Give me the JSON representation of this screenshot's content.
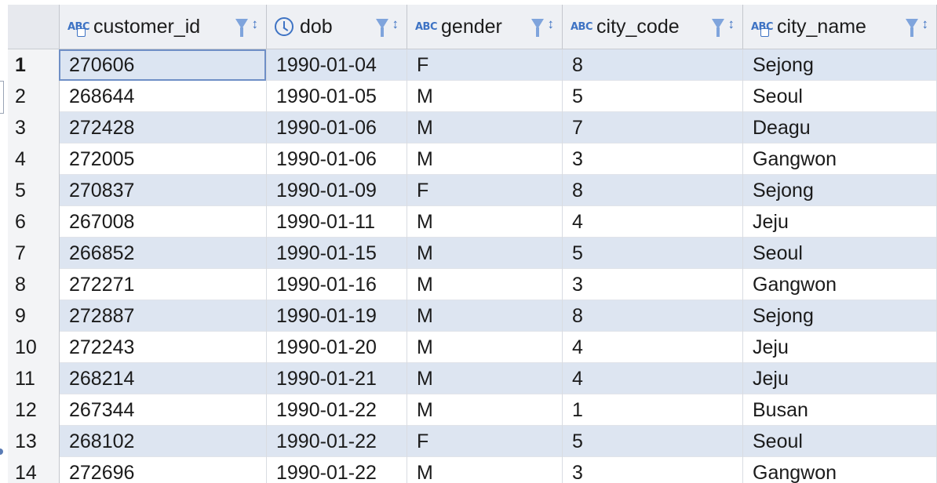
{
  "table": {
    "columns": [
      {
        "name": "customer_id",
        "type_icon": "text-key-type-icon",
        "type_label": "ABC"
      },
      {
        "name": "dob",
        "type_icon": "clock-type-icon",
        "type_label": ""
      },
      {
        "name": "gender",
        "type_icon": "text-type-icon",
        "type_label": "ABC"
      },
      {
        "name": "city_code",
        "type_icon": "text-type-icon",
        "type_label": "ABC"
      },
      {
        "name": "city_name",
        "type_icon": "text-key-type-icon",
        "type_label": "ABC"
      }
    ],
    "rows": [
      {
        "n": "1",
        "cells": [
          "270606",
          "1990-01-04",
          "F",
          "8",
          "Sejong"
        ]
      },
      {
        "n": "2",
        "cells": [
          "268644",
          "1990-01-05",
          "M",
          "5",
          "Seoul"
        ]
      },
      {
        "n": "3",
        "cells": [
          "272428",
          "1990-01-06",
          "M",
          "7",
          "Deagu"
        ]
      },
      {
        "n": "4",
        "cells": [
          "272005",
          "1990-01-06",
          "M",
          "3",
          "Gangwon"
        ]
      },
      {
        "n": "5",
        "cells": [
          "270837",
          "1990-01-09",
          "F",
          "8",
          "Sejong"
        ]
      },
      {
        "n": "6",
        "cells": [
          "267008",
          "1990-01-11",
          "M",
          "4",
          "Jeju"
        ]
      },
      {
        "n": "7",
        "cells": [
          "266852",
          "1990-01-15",
          "M",
          "5",
          "Seoul"
        ]
      },
      {
        "n": "8",
        "cells": [
          "272271",
          "1990-01-16",
          "M",
          "3",
          "Gangwon"
        ]
      },
      {
        "n": "9",
        "cells": [
          "272887",
          "1990-01-19",
          "M",
          "8",
          "Sejong"
        ]
      },
      {
        "n": "10",
        "cells": [
          "272243",
          "1990-01-20",
          "M",
          "4",
          "Jeju"
        ]
      },
      {
        "n": "11",
        "cells": [
          "268214",
          "1990-01-21",
          "M",
          "4",
          "Jeju"
        ]
      },
      {
        "n": "12",
        "cells": [
          "267344",
          "1990-01-22",
          "M",
          "1",
          "Busan"
        ]
      },
      {
        "n": "13",
        "cells": [
          "268102",
          "1990-01-22",
          "F",
          "5",
          "Seoul"
        ]
      },
      {
        "n": "14",
        "cells": [
          "272696",
          "1990-01-22",
          "M",
          "3",
          "Gangwon"
        ]
      }
    ],
    "selected_row": "1",
    "filter_icon": "funnel-filter-icon",
    "sort_icon": "sort-arrows-icon",
    "sort_glyph": "↕"
  },
  "colors": {
    "header_bg": "#eef0f4",
    "alt_row_bg": "#dde5f1",
    "accent": "#3e73c4"
  }
}
